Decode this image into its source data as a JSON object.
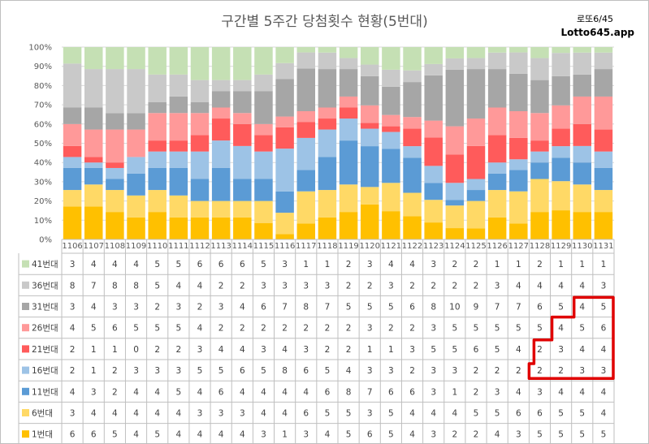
{
  "title": "구간별 5주간 당첨횟수 현황(5번대)",
  "brand": {
    "line1": "로또6/45",
    "line2": "Lotto645.app"
  },
  "chart_data": {
    "type": "bar",
    "stacked": "percent",
    "ylim": [
      0,
      100
    ],
    "y_ticks": [
      "0%",
      "10%",
      "20%",
      "30%",
      "40%",
      "50%",
      "60%",
      "70%",
      "80%",
      "90%",
      "100%"
    ],
    "grid": true,
    "legend": "bottom-table",
    "categories": [
      "1106",
      "1107",
      "1108",
      "1109",
      "1110",
      "1111",
      "1112",
      "1113",
      "1114",
      "1115",
      "1116",
      "1117",
      "1118",
      "1119",
      "1120",
      "1121",
      "1122",
      "1123",
      "1124",
      "1125",
      "1126",
      "1127",
      "1128",
      "1129",
      "1130",
      "1131"
    ],
    "series": [
      {
        "name": "1번대",
        "color": "#ffc000",
        "values": [
          6,
          6,
          5,
          4,
          5,
          4,
          4,
          4,
          4,
          3,
          1,
          3,
          4,
          5,
          6,
          5,
          4,
          3,
          2,
          2,
          4,
          3,
          5,
          5,
          5,
          5
        ]
      },
      {
        "name": "6번대",
        "color": "#ffd966",
        "values": [
          3,
          4,
          4,
          4,
          4,
          4,
          3,
          3,
          3,
          4,
          4,
          6,
          5,
          5,
          3,
          5,
          4,
          4,
          4,
          5,
          5,
          6,
          6,
          5,
          5,
          4
        ]
      },
      {
        "name": "11번대",
        "color": "#5b9bd5",
        "values": [
          4,
          3,
          2,
          4,
          4,
          5,
          4,
          6,
          4,
          4,
          4,
          4,
          6,
          8,
          7,
          6,
          6,
          3,
          1,
          2,
          3,
          4,
          3,
          4,
          4,
          4
        ]
      },
      {
        "name": "16번대",
        "color": "#9dc3e6",
        "values": [
          2,
          1,
          2,
          3,
          3,
          3,
          5,
          5,
          6,
          5,
          8,
          6,
          5,
          4,
          3,
          3,
          2,
          3,
          3,
          2,
          2,
          2,
          2,
          2,
          3,
          3
        ]
      },
      {
        "name": "21번대",
        "color": "#ff5b5b",
        "values": [
          2,
          1,
          1,
          0,
          2,
          2,
          3,
          4,
          4,
          3,
          4,
          3,
          2,
          2,
          1,
          1,
          3,
          5,
          5,
          6,
          5,
          4,
          2,
          3,
          4,
          4
        ]
      },
      {
        "name": "26번대",
        "color": "#ff9999",
        "values": [
          4,
          5,
          6,
          5,
          5,
          5,
          4,
          2,
          2,
          2,
          2,
          2,
          2,
          2,
          3,
          2,
          2,
          3,
          5,
          5,
          5,
          5,
          5,
          4,
          5,
          6
        ]
      },
      {
        "name": "31번대",
        "color": "#a6a6a6",
        "values": [
          3,
          4,
          3,
          3,
          2,
          3,
          2,
          3,
          4,
          6,
          7,
          8,
          7,
          5,
          5,
          5,
          6,
          8,
          10,
          9,
          7,
          7,
          6,
          5,
          4,
          5
        ]
      },
      {
        "name": "36번대",
        "color": "#c9c9c9",
        "values": [
          8,
          7,
          8,
          8,
          5,
          4,
          4,
          2,
          2,
          3,
          3,
          3,
          3,
          2,
          2,
          3,
          2,
          2,
          2,
          2,
          3,
          4,
          4,
          4,
          4,
          3
        ]
      },
      {
        "name": "41번대",
        "color": "#c5e0b4",
        "values": [
          3,
          4,
          4,
          4,
          5,
          5,
          6,
          6,
          6,
          5,
          3,
          1,
          1,
          2,
          3,
          4,
          4,
          3,
          2,
          2,
          1,
          1,
          2,
          1,
          1,
          1
        ]
      }
    ]
  }
}
